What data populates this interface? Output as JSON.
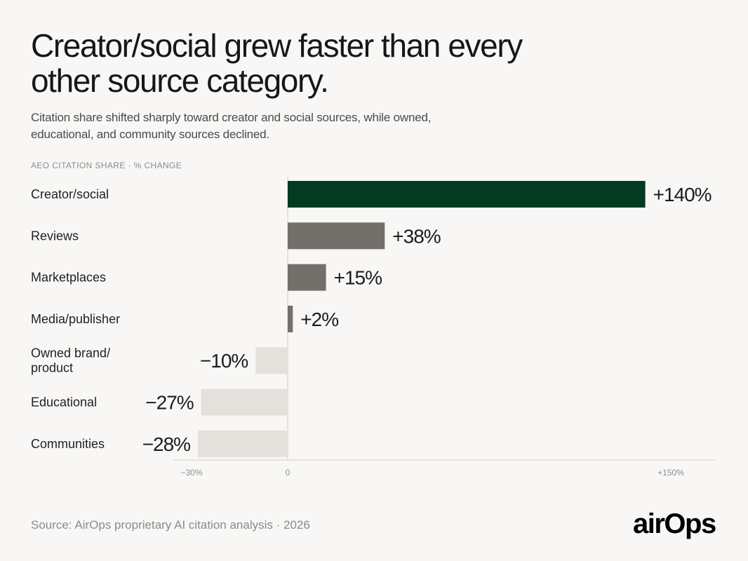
{
  "header": {
    "title_lines": [
      "Creator/social grew faster than every",
      "other source category."
    ],
    "subtitle_lines": [
      "Citation share shifted sharply toward creator and social sources, while owned,",
      "educational, and community sources declined."
    ],
    "eyebrow": "AEO CITATION SHARE · % CHANGE"
  },
  "chart_data": {
    "type": "bar",
    "orientation": "horizontal",
    "eyebrow": "AEO CITATION SHARE · % CHANGE",
    "categories": [
      "Creator/social",
      "Reviews",
      "Marketplaces",
      "Media/publisher",
      "Owned brand/ product",
      "Educational",
      "Communities"
    ],
    "category_labels": [
      [
        "Creator/social"
      ],
      [
        "Reviews"
      ],
      [
        "Marketplaces"
      ],
      [
        "Media/publisher"
      ],
      [
        "Owned brand/",
        "product"
      ],
      [
        "Educational"
      ],
      [
        "Communities"
      ]
    ],
    "values": [
      140,
      38,
      15,
      2,
      -10,
      -27,
      -28
    ],
    "value_labels": [
      "+140%",
      "+38%",
      "+15%",
      "+2%",
      "−10%",
      "−27%",
      "−28%"
    ],
    "xlim": [
      -30,
      150
    ],
    "x_ticks": [
      -30,
      0,
      150
    ],
    "x_tick_labels": [
      "−30%",
      "0",
      "+150%"
    ],
    "grid": false,
    "legend": "none",
    "colors": {
      "highlight": "#023a22",
      "positive": "#72706b",
      "negative": "#e4e1dc",
      "zero_line": "#d2cfca",
      "axis": "#d2cfca",
      "label_text": "#1f1f1f",
      "tick_text": "#8d8d8d",
      "background": "#f8f7f5"
    }
  },
  "footer": {
    "source": "Source: AirOps proprietary AI citation analysis · 2026"
  },
  "brand": {
    "name": "airOps",
    "logo_color": "#151515"
  }
}
